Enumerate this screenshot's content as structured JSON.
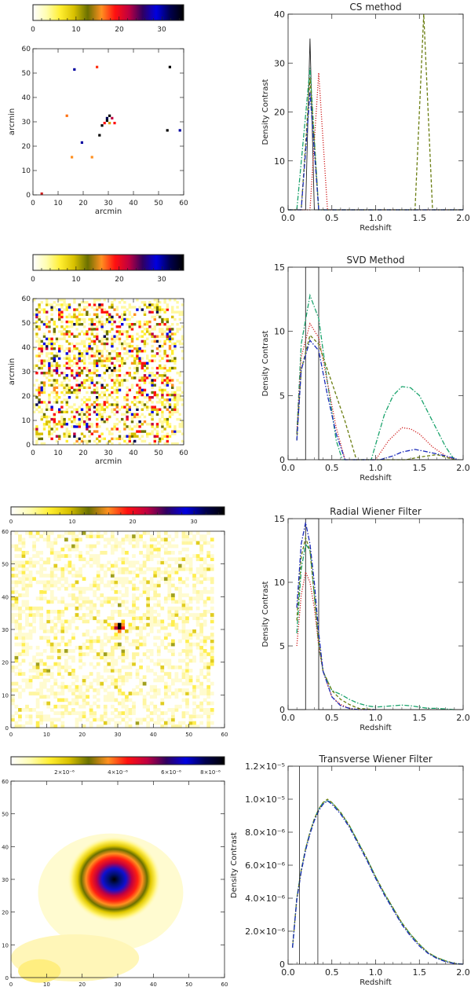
{
  "colors": {
    "green": "#1aa36c",
    "red": "#d02020",
    "olive": "#6a7d10",
    "blue": "#1a2ab8",
    "gray": "#444444",
    "truth": "#222222",
    "map_pixel": "#4a4a10"
  },
  "colorbar_scale": [
    "#ffffff",
    "#fffdb0",
    "#ffee30",
    "#d8c000",
    "#6a7000",
    "#ff9020",
    "#ff1010",
    "#c00040",
    "#300060",
    "#0000e0",
    "#000050",
    "#000000"
  ],
  "chart_data": [
    {
      "id": "cs_map",
      "type": "heatmap",
      "xlabel": "arcmin",
      "ylabel": "arcmin",
      "xlim": [
        0,
        60
      ],
      "ylim": [
        0,
        60
      ],
      "xticks": [
        "0",
        "10",
        "20",
        "30",
        "40",
        "50",
        "60"
      ],
      "yticks": [
        "0",
        "10",
        "20",
        "30",
        "40",
        "50",
        "60"
      ],
      "colorbar_ticks": [
        "0",
        "10",
        "20",
        "30"
      ]
    },
    {
      "id": "cs_profile",
      "type": "line",
      "title": "CS method",
      "xlabel": "Redshift",
      "ylabel": "Density Contrast",
      "xlim": [
        0,
        2
      ],
      "ylim": [
        0,
        40
      ],
      "xticks": [
        "0.0",
        "0.5",
        "1.0",
        "1.5",
        "2.0"
      ],
      "yticks": [
        "0",
        "10",
        "20",
        "30",
        "40"
      ],
      "series": [
        {
          "name": "truth",
          "color": "truth",
          "x": [
            0.0,
            0.2,
            0.25,
            0.3,
            0.4,
            2.0
          ],
          "y": [
            0,
            0,
            35,
            0,
            0,
            0
          ]
        },
        {
          "name": "green dash-dot",
          "color": "green",
          "x": [
            0.0,
            0.1,
            0.25,
            0.35,
            2.0
          ],
          "y": [
            0,
            0,
            29,
            0,
            0
          ]
        },
        {
          "name": "red dotted",
          "color": "red",
          "x": [
            0.0,
            0.25,
            0.35,
            0.45,
            2.0
          ],
          "y": [
            0,
            0,
            28,
            0,
            0
          ]
        },
        {
          "name": "olive dashed",
          "color": "olive",
          "x": [
            0.0,
            0.15,
            0.25,
            0.35,
            1.45,
            1.55,
            1.65,
            2.0
          ],
          "y": [
            0,
            0,
            27,
            0,
            0,
            40,
            0,
            0
          ]
        },
        {
          "name": "blue dash-dot",
          "color": "blue",
          "x": [
            0.0,
            0.15,
            0.25,
            0.35,
            2.0
          ],
          "y": [
            0,
            0,
            24,
            0,
            0
          ]
        }
      ]
    },
    {
      "id": "svd_map",
      "type": "heatmap",
      "xlabel": "arcmin",
      "ylabel": "arcmin",
      "xlim": [
        0,
        60
      ],
      "ylim": [
        0,
        60
      ],
      "xticks": [
        "0",
        "10",
        "20",
        "30",
        "40",
        "50",
        "60"
      ],
      "yticks": [
        "0",
        "10",
        "20",
        "30",
        "40",
        "50",
        "60"
      ],
      "colorbar_ticks": [
        "0",
        "10",
        "20",
        "30"
      ]
    },
    {
      "id": "svd_profile",
      "type": "line",
      "title": "SVD Method",
      "xlabel": "Redshift",
      "ylabel": "Density Contrast",
      "xlim": [
        0,
        2
      ],
      "ylim": [
        0,
        15
      ],
      "xticks": [
        "0.0",
        "0.5",
        "1.0",
        "1.5",
        "2.0"
      ],
      "yticks": [
        "0",
        "5",
        "10",
        "15"
      ],
      "series": [
        {
          "name": "truth",
          "color": "truth",
          "x": [
            0.0,
            0.2,
            0.2,
            0.35,
            0.35,
            2.0
          ],
          "y": [
            0,
            0,
            15,
            15,
            0,
            0
          ]
        },
        {
          "name": "green dash-dot",
          "color": "green",
          "x": [
            0.1,
            0.15,
            0.25,
            0.35,
            0.45,
            0.55,
            0.62,
            0.95,
            1.1,
            1.2,
            1.3,
            1.4,
            1.5,
            1.65,
            1.8,
            1.9
          ],
          "y": [
            2,
            9,
            12.8,
            11,
            6,
            1.5,
            0,
            0,
            3.5,
            5,
            5.7,
            5.6,
            5,
            3,
            1,
            0
          ]
        },
        {
          "name": "red dotted",
          "color": "red",
          "x": [
            0.1,
            0.15,
            0.25,
            0.35,
            0.45,
            0.55,
            0.65,
            1.0,
            1.15,
            1.3,
            1.4,
            1.5,
            1.65,
            1.8,
            1.9
          ],
          "y": [
            2,
            8,
            10.6,
            9.5,
            6,
            2.5,
            0,
            0,
            1.5,
            2.5,
            2.4,
            2,
            1,
            0.3,
            0
          ]
        },
        {
          "name": "olive dashed",
          "color": "olive",
          "x": [
            0.1,
            0.15,
            0.25,
            0.35,
            0.5,
            0.65,
            0.78,
            1.35,
            1.5,
            1.7,
            1.9
          ],
          "y": [
            1.5,
            7,
            9.7,
            9,
            6,
            3,
            0,
            0,
            0.2,
            0.4,
            0
          ]
        },
        {
          "name": "blue dash-dot",
          "color": "blue",
          "x": [
            0.1,
            0.15,
            0.25,
            0.35,
            0.45,
            0.55,
            0.65,
            1.05,
            1.2,
            1.3,
            1.45,
            1.6,
            1.8,
            1.95
          ],
          "y": [
            1.5,
            7,
            9.3,
            8.5,
            5,
            2,
            0,
            0,
            0.3,
            0.6,
            0.8,
            0.6,
            0.3,
            0
          ]
        }
      ]
    },
    {
      "id": "rwf_map",
      "type": "heatmap",
      "xlim": [
        0,
        60
      ],
      "ylim": [
        0,
        60
      ],
      "xticks": [
        "0",
        "10",
        "20",
        "30",
        "40",
        "50",
        "60"
      ],
      "yticks": [
        "0",
        "10",
        "20",
        "30",
        "40",
        "50",
        "60"
      ],
      "colorbar_ticks": [
        "0",
        "10",
        "20",
        "30"
      ]
    },
    {
      "id": "rwf_profile",
      "type": "line",
      "title": "Radial Wiener Filter",
      "xlabel": "Redshift",
      "ylabel": "Density Contrast",
      "xlim": [
        0,
        2
      ],
      "ylim": [
        0,
        15
      ],
      "xticks": [
        "0.0",
        "0.5",
        "1.0",
        "1.5",
        "2.0"
      ],
      "yticks": [
        "0",
        "5",
        "10",
        "15"
      ],
      "series": [
        {
          "name": "truth",
          "color": "truth",
          "x": [
            0.0,
            0.2,
            0.2,
            0.35,
            0.35,
            2.0
          ],
          "y": [
            0,
            0,
            15,
            15,
            0,
            0
          ]
        },
        {
          "name": "green dash-dot",
          "color": "green",
          "x": [
            0.1,
            0.15,
            0.2,
            0.25,
            0.3,
            0.35,
            0.4,
            0.5,
            0.6,
            0.7,
            0.8,
            0.9,
            1.0,
            1.1,
            1.2,
            1.3,
            1.4,
            1.5,
            1.6,
            1.7,
            1.8,
            1.9
          ],
          "y": [
            6,
            11,
            13,
            12.5,
            9,
            5,
            3,
            1.5,
            1.2,
            0.8,
            0.5,
            0.3,
            0.2,
            0.25,
            0.3,
            0.35,
            0.3,
            0.2,
            0.1,
            0.1,
            0.05,
            0
          ]
        },
        {
          "name": "red dotted",
          "color": "red",
          "x": [
            0.1,
            0.15,
            0.2,
            0.25,
            0.3,
            0.35,
            0.4,
            0.5,
            0.6,
            0.7,
            0.8,
            1.0
          ],
          "y": [
            5,
            9,
            10.8,
            10,
            8,
            5,
            3,
            1,
            0.4,
            0.1,
            0,
            0
          ]
        },
        {
          "name": "olive dashed",
          "color": "olive",
          "x": [
            0.1,
            0.15,
            0.2,
            0.25,
            0.3,
            0.35,
            0.4,
            0.5,
            0.6,
            0.7,
            0.8,
            1.0
          ],
          "y": [
            7,
            12,
            13.5,
            12.5,
            9,
            5.5,
            3,
            1.5,
            0.8,
            0.4,
            0.1,
            0
          ]
        },
        {
          "name": "blue dash-dot",
          "color": "blue",
          "x": [
            0.1,
            0.15,
            0.2,
            0.25,
            0.3,
            0.35,
            0.4,
            0.5,
            0.6,
            0.7,
            0.8,
            1.0
          ],
          "y": [
            8,
            13,
            14.7,
            13,
            10,
            6,
            3,
            1,
            0.3,
            0.1,
            0,
            0
          ]
        }
      ]
    },
    {
      "id": "twf_map",
      "type": "heatmap",
      "xlim": [
        0,
        60
      ],
      "ylim": [
        0,
        60
      ],
      "xticks": [
        "0",
        "10",
        "20",
        "30",
        "40",
        "50",
        "60"
      ],
      "yticks": [
        "0",
        "10",
        "20",
        "30",
        "40",
        "50",
        "60"
      ],
      "colorbar_ticks": [
        "2×10⁻⁶",
        "4×10⁻⁶",
        "6×10⁻⁶",
        "8×10⁻⁶"
      ]
    },
    {
      "id": "twf_profile",
      "type": "line",
      "title": "Transverse Wiener Filter",
      "xlabel": "Redshift",
      "ylabel": "Density Contrast",
      "xlim": [
        0,
        2
      ],
      "ylim": [
        0,
        1.2e-05
      ],
      "xticks": [
        "0.0",
        "0.5",
        "1.0",
        "1.5",
        "2.0"
      ],
      "yticks": [
        "0",
        "2.0×10⁻⁶",
        "4.0×10⁻⁶",
        "6.0×10⁻⁶",
        "8.0×10⁻⁶",
        "1.0×10⁻⁵",
        "1.2×10⁻⁵"
      ],
      "vlines": [
        0.13,
        0.34
      ],
      "series": [
        {
          "name": "green dash-dot",
          "color": "green",
          "x": [
            0.05,
            0.1,
            0.15,
            0.2,
            0.25,
            0.3,
            0.35,
            0.4,
            0.45,
            0.5,
            0.6,
            0.7,
            0.8,
            0.9,
            1.0,
            1.1,
            1.2,
            1.3,
            1.4,
            1.5,
            1.6,
            1.7,
            1.8,
            1.9,
            2.0
          ],
          "y": [
            1e-06,
            4e-06,
            5.7e-06,
            7e-06,
            8e-06,
            8.8e-06,
            9.4e-06,
            9.8e-06,
            9.9e-06,
            9.8e-06,
            9.2e-06,
            8.4e-06,
            7.4e-06,
            6.4e-06,
            5.3e-06,
            4.3e-06,
            3.4e-06,
            2.5e-06,
            1.8e-06,
            1.2e-06,
            7e-07,
            4e-07,
            2e-07,
            5e-08,
            0
          ]
        },
        {
          "name": "olive dashed",
          "color": "olive",
          "x": [
            0.05,
            0.1,
            0.15,
            0.2,
            0.25,
            0.3,
            0.35,
            0.4,
            0.45,
            0.5,
            0.6,
            0.7,
            0.8,
            0.9,
            1.0,
            1.1,
            1.2,
            1.3,
            1.4,
            1.5,
            1.6,
            1.7,
            1.8,
            1.9,
            2.0
          ],
          "y": [
            1e-06,
            4e-06,
            5.7e-06,
            7e-06,
            8e-06,
            8.8e-06,
            9.4e-06,
            9.8e-06,
            1e-05,
            9.8e-06,
            9.2e-06,
            8.4e-06,
            7.4e-06,
            6.4e-06,
            5.3e-06,
            4.3e-06,
            3.4e-06,
            2.5e-06,
            1.8e-06,
            1.2e-06,
            7e-07,
            4e-07,
            2e-07,
            5e-08,
            0
          ]
        },
        {
          "name": "blue dash-dot",
          "color": "blue",
          "x": [
            0.05,
            0.1,
            0.15,
            0.2,
            0.25,
            0.3,
            0.35,
            0.4,
            0.45,
            0.5,
            0.6,
            0.7,
            0.8,
            0.9,
            1.0,
            1.1,
            1.2,
            1.3,
            1.4,
            1.5,
            1.6,
            1.7,
            1.8,
            1.9,
            2.0
          ],
          "y": [
            1e-06,
            3.9e-06,
            5.6e-06,
            6.9e-06,
            7.9e-06,
            8.7e-06,
            9.3e-06,
            9.7e-06,
            9.9e-06,
            9.7e-06,
            9.1e-06,
            8.3e-06,
            7.3e-06,
            6.3e-06,
            5.2e-06,
            4.2e-06,
            3.3e-06,
            2.4e-06,
            1.7e-06,
            1.1e-06,
            6.5e-07,
            3.5e-07,
            1.5e-07,
            4e-08,
            0
          ]
        }
      ]
    }
  ]
}
